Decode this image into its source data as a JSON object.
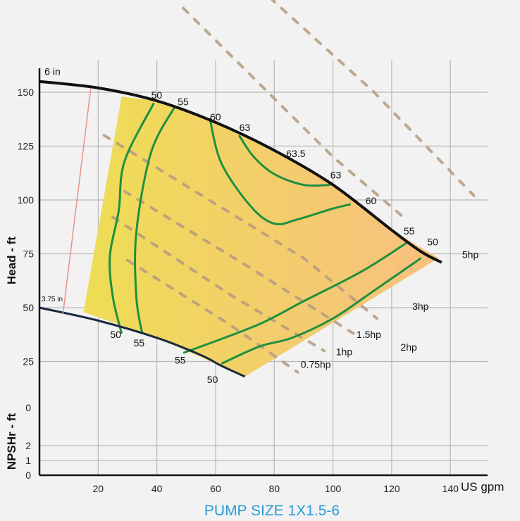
{
  "chart_data": {
    "type": "line",
    "title": "PUMP SIZE 1X1.5-6",
    "x_unit": "US gpm",
    "xlim": [
      0,
      150
    ],
    "x_ticks": [
      20,
      40,
      60,
      80,
      100,
      120,
      140
    ],
    "head": {
      "ylabel": "Head - ft",
      "ylim": [
        0,
        160
      ],
      "ticks": [
        25,
        50,
        75,
        100,
        125,
        150
      ],
      "tick_labels": [
        "25",
        "50",
        "75",
        "100",
        "125",
        "150"
      ]
    },
    "npshr": {
      "ylabel": "NPSHr - ft",
      "ticks": [
        0,
        1,
        2
      ],
      "tick_labels": [
        "0",
        "1",
        "2"
      ],
      "top_label": "0"
    },
    "impeller_curves": [
      {
        "label": "6 in",
        "points": [
          [
            0,
            155
          ],
          [
            20,
            152
          ],
          [
            40,
            146
          ],
          [
            60,
            136
          ],
          [
            80,
            123
          ],
          [
            100,
            107
          ],
          [
            120,
            86
          ],
          [
            130,
            76
          ],
          [
            137,
            71
          ]
        ]
      },
      {
        "label": "3.75 in",
        "points": [
          [
            0,
            50
          ],
          [
            20,
            44
          ],
          [
            40,
            36
          ],
          [
            55,
            28
          ],
          [
            62,
            23
          ],
          [
            70,
            18
          ]
        ]
      }
    ],
    "efficiency_curves": [
      {
        "label": "50",
        "points": [
          [
            39,
            145
          ],
          [
            29,
            118
          ],
          [
            27,
            95
          ],
          [
            24,
            74
          ],
          [
            25,
            55
          ],
          [
            28,
            38
          ]
        ]
      },
      {
        "label": "55",
        "points": [
          [
            46,
            143
          ],
          [
            38,
            122
          ],
          [
            33,
            85
          ],
          [
            33,
            55
          ],
          [
            35,
            38
          ]
        ]
      },
      {
        "label": "60",
        "points": [
          [
            58,
            138
          ],
          [
            62,
            117
          ],
          [
            72,
            97
          ],
          [
            80,
            89
          ],
          [
            88,
            91
          ],
          [
            100,
            96
          ],
          [
            106,
            98
          ]
        ]
      },
      {
        "label": "63",
        "points": [
          [
            68,
            130
          ],
          [
            73,
            120
          ],
          [
            80,
            112
          ],
          [
            90,
            107
          ],
          [
            99,
            107
          ]
        ]
      },
      {
        "label": "55",
        "points": [
          [
            49,
            29
          ],
          [
            63,
            36
          ],
          [
            76,
            43
          ],
          [
            90,
            53
          ],
          [
            110,
            67
          ],
          [
            125,
            80
          ]
        ]
      },
      {
        "label": "50",
        "points": [
          [
            62,
            24
          ],
          [
            75,
            32
          ],
          [
            86,
            36
          ],
          [
            100,
            45
          ],
          [
            113,
            57
          ],
          [
            130,
            73
          ]
        ]
      }
    ],
    "efficiency_labels": [
      {
        "text": "50",
        "x": 40,
        "y": 147
      },
      {
        "text": "55",
        "x": 49,
        "y": 144
      },
      {
        "text": "60",
        "x": 60,
        "y": 137
      },
      {
        "text": "63",
        "x": 70,
        "y": 132
      },
      {
        "text": "63.5",
        "x": 86,
        "y": 120
      },
      {
        "text": "63",
        "x": 101,
        "y": 110
      },
      {
        "text": "60",
        "x": 113,
        "y": 98
      },
      {
        "text": "55",
        "x": 126,
        "y": 84
      },
      {
        "text": "50",
        "x": 134,
        "y": 79
      },
      {
        "text": "50",
        "x": 26,
        "y": 36
      },
      {
        "text": "55",
        "x": 34,
        "y": 32
      },
      {
        "text": "55",
        "x": 48,
        "y": 24
      },
      {
        "text": "50",
        "x": 59,
        "y": 15
      }
    ],
    "power_curves": [
      {
        "label": "5hp",
        "points": [
          [
            59,
            218
          ],
          [
            114,
            150
          ],
          [
            148,
            102
          ]
        ],
        "label_at": [
          144,
          73
        ]
      },
      {
        "label": "3hp",
        "points": [
          [
            49,
            189
          ],
          [
            100,
            120
          ],
          [
            124,
            92
          ]
        ],
        "label_at": [
          127,
          49
        ]
      },
      {
        "label": "2hp",
        "points": [
          [
            22,
            130
          ],
          [
            90,
            73
          ],
          [
            115,
            45
          ]
        ],
        "label_at": [
          123,
          30
        ]
      },
      {
        "label": "1.5hp",
        "points": [
          [
            29,
            104
          ],
          [
            70,
            70
          ],
          [
            107,
            38
          ]
        ],
        "label_at": [
          108,
          36
        ]
      },
      {
        "label": "1hp",
        "points": [
          [
            25,
            92
          ],
          [
            65,
            56
          ],
          [
            97,
            30
          ]
        ],
        "label_at": [
          101,
          28
        ]
      },
      {
        "label": "0.75hp",
        "points": [
          [
            30,
            72
          ],
          [
            65,
            42
          ],
          [
            88,
            20
          ]
        ],
        "label_at": [
          89,
          22
        ]
      }
    ],
    "colors": {
      "operating_region_left": "#eedd55",
      "operating_region_right": "#f8c080",
      "efficiency_line": "#1e9040",
      "impeller_line": "#111111",
      "power_line": "#b49a80",
      "title": "#2a9ad6",
      "grid": "#b8b8b8"
    }
  }
}
